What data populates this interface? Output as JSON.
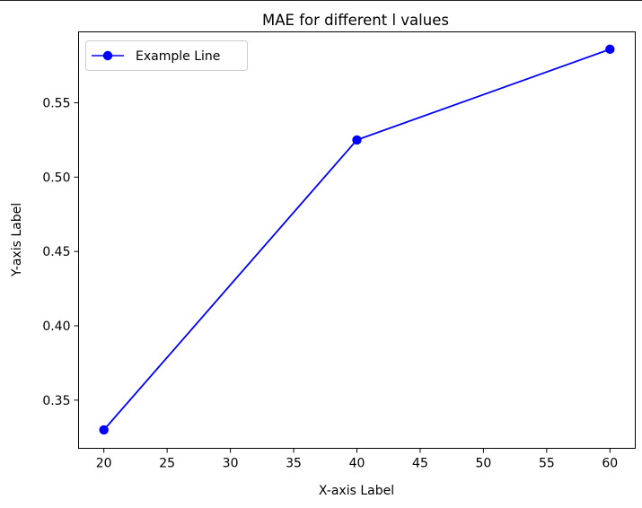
{
  "chart_data": {
    "type": "line",
    "title": "MAE for different l values",
    "xlabel": "X-axis Label",
    "ylabel": "Y-axis Label",
    "xlim": [
      18,
      62
    ],
    "ylim": [
      0.3176,
      0.5977
    ],
    "xticks": [
      20,
      25,
      30,
      35,
      40,
      45,
      50,
      55,
      60
    ],
    "yticks": [
      0.35,
      0.4,
      0.45,
      0.5,
      0.55
    ],
    "ytick_labels": [
      "0.35",
      "0.40",
      "0.45",
      "0.50",
      "0.55"
    ],
    "grid": false,
    "legend_position": "upper-left",
    "series": [
      {
        "name": "Example Line",
        "color": "#0000ff",
        "marker": "circle",
        "x": [
          20,
          40,
          60
        ],
        "y": [
          0.33,
          0.525,
          0.586
        ]
      }
    ]
  }
}
